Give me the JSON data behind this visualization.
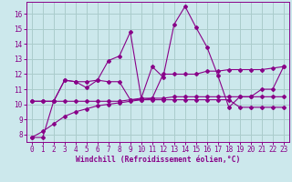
{
  "xlabel": "Windchill (Refroidissement éolien,°C)",
  "background_color": "#cce8ec",
  "grid_color": "#aacccc",
  "line_color": "#880088",
  "x_data": [
    0,
    1,
    2,
    3,
    4,
    5,
    6,
    7,
    8,
    9,
    10,
    11,
    12,
    13,
    14,
    15,
    16,
    17,
    18,
    19,
    20,
    21,
    22,
    23
  ],
  "series1": [
    7.8,
    7.8,
    10.2,
    11.6,
    11.5,
    11.1,
    11.6,
    12.9,
    13.2,
    14.8,
    10.4,
    12.5,
    11.8,
    15.3,
    16.5,
    15.1,
    13.8,
    11.9,
    9.8,
    10.5,
    10.5,
    11.0,
    11.0,
    12.5
  ],
  "series2": [
    10.2,
    10.2,
    10.2,
    11.6,
    11.5,
    11.5,
    11.6,
    11.5,
    11.5,
    10.3,
    10.4,
    10.4,
    12.0,
    12.0,
    12.0,
    12.0,
    12.2,
    12.2,
    12.3,
    12.3,
    12.3,
    12.3,
    12.4,
    12.5
  ],
  "series3": [
    10.2,
    10.2,
    10.2,
    10.2,
    10.2,
    10.2,
    10.2,
    10.2,
    10.2,
    10.3,
    10.3,
    10.3,
    10.3,
    10.3,
    10.3,
    10.3,
    10.3,
    10.3,
    10.3,
    9.8,
    9.8,
    9.8,
    9.8,
    9.8
  ],
  "series4": [
    7.8,
    8.2,
    8.7,
    9.2,
    9.5,
    9.7,
    9.9,
    10.0,
    10.1,
    10.2,
    10.3,
    10.4,
    10.4,
    10.5,
    10.5,
    10.5,
    10.5,
    10.5,
    10.5,
    10.5,
    10.5,
    10.5,
    10.5,
    10.5
  ],
  "ylim": [
    7.5,
    16.8
  ],
  "xlim": [
    -0.5,
    23.5
  ],
  "yticks": [
    8,
    9,
    10,
    11,
    12,
    13,
    14,
    15,
    16
  ],
  "xticks": [
    0,
    1,
    2,
    3,
    4,
    5,
    6,
    7,
    8,
    9,
    10,
    11,
    12,
    13,
    14,
    15,
    16,
    17,
    18,
    19,
    20,
    21,
    22,
    23
  ]
}
